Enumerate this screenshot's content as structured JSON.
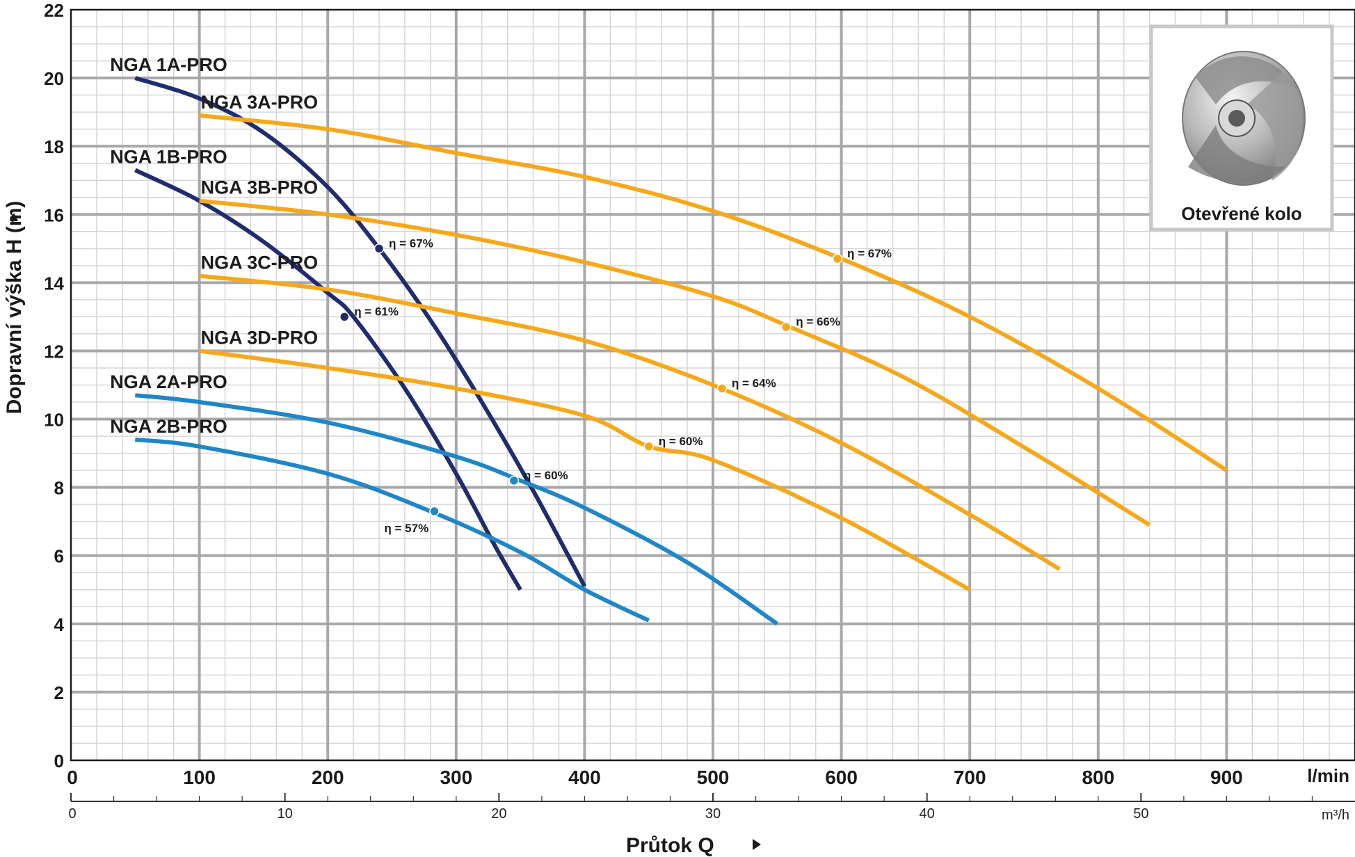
{
  "chart_data": {
    "type": "line",
    "xlabel": "Průtok Q",
    "x_unit": "l/min",
    "x2_unit": "m³/h",
    "ylabel": "Dopravní výška H (m)",
    "xlim": [
      0,
      1000
    ],
    "ylim": [
      0,
      22
    ],
    "x_ticks": [
      0,
      100,
      200,
      300,
      400,
      500,
      600,
      700,
      800,
      900
    ],
    "x2_ticks": [
      0,
      10,
      20,
      30,
      40,
      50
    ],
    "y_ticks": [
      0,
      2,
      4,
      6,
      8,
      10,
      12,
      14,
      16,
      18,
      20,
      22
    ],
    "grid": true,
    "inset": {
      "caption": "Otevřené kolo"
    },
    "series": [
      {
        "name": "NGA 1A-PRO",
        "color": "#1f2d6e",
        "x": [
          50,
          100,
          150,
          200,
          240,
          280,
          320,
          360,
          400
        ],
        "y": [
          20.0,
          19.4,
          18.4,
          16.8,
          15.0,
          12.9,
          10.5,
          7.9,
          5.1
        ],
        "efficiency": {
          "label": "η = 67%",
          "x": 240,
          "y": 15.0
        }
      },
      {
        "name": "NGA 1B-PRO",
        "color": "#1f2d6e",
        "x": [
          50,
          100,
          150,
          200,
          220,
          260,
          300,
          330,
          350
        ],
        "y": [
          17.3,
          16.4,
          15.2,
          13.7,
          13.0,
          10.9,
          8.4,
          6.3,
          5.0
        ],
        "efficiency": {
          "label": "η = 61%",
          "x": 213,
          "y": 13.0
        }
      },
      {
        "name": "NGA 3A-PRO",
        "color": "#f5a81c",
        "x": [
          100,
          200,
          300,
          400,
          500,
          600,
          700,
          800,
          900
        ],
        "y": [
          18.9,
          18.5,
          17.8,
          17.1,
          16.1,
          14.7,
          13.0,
          10.9,
          8.5
        ],
        "efficiency": {
          "label": "η = 67%",
          "x": 597,
          "y": 14.7
        }
      },
      {
        "name": "NGA 3B-PRO",
        "color": "#f5a81c",
        "x": [
          100,
          200,
          300,
          400,
          500,
          560,
          650,
          750,
          840
        ],
        "y": [
          16.4,
          16.0,
          15.4,
          14.6,
          13.6,
          12.7,
          11.2,
          9.0,
          6.9
        ],
        "efficiency": {
          "label": "η = 66%",
          "x": 557,
          "y": 12.7
        }
      },
      {
        "name": "NGA 3C-PRO",
        "color": "#f5a81c",
        "x": [
          100,
          200,
          300,
          400,
          500,
          600,
          700,
          770
        ],
        "y": [
          14.2,
          13.8,
          13.1,
          12.3,
          11.0,
          9.3,
          7.2,
          5.6
        ],
        "efficiency": {
          "label": "η = 64%",
          "x": 507,
          "y": 10.9
        }
      },
      {
        "name": "NGA 3D-PRO",
        "color": "#f5a81c",
        "x": [
          100,
          200,
          300,
          400,
          450,
          500,
          600,
          700
        ],
        "y": [
          12.0,
          11.5,
          10.9,
          10.1,
          9.2,
          8.8,
          7.1,
          5.0
        ],
        "efficiency": {
          "label": "η = 60%",
          "x": 450,
          "y": 9.2
        }
      },
      {
        "name": "NGA 2A-PRO",
        "color": "#1f87c8",
        "x": [
          50,
          100,
          200,
          300,
          350,
          400,
          480,
          550
        ],
        "y": [
          10.7,
          10.5,
          9.9,
          8.9,
          8.2,
          7.4,
          5.8,
          4.0
        ],
        "efficiency": {
          "label": "η = 60%",
          "x": 345,
          "y": 8.2
        }
      },
      {
        "name": "NGA 2B-PRO",
        "color": "#1f87c8",
        "x": [
          50,
          100,
          200,
          280,
          350,
          400,
          450
        ],
        "y": [
          9.4,
          9.2,
          8.4,
          7.3,
          6.1,
          5.0,
          4.1
        ],
        "efficiency": {
          "label": "η = 57%",
          "x": 283,
          "y": 7.3
        }
      }
    ]
  }
}
